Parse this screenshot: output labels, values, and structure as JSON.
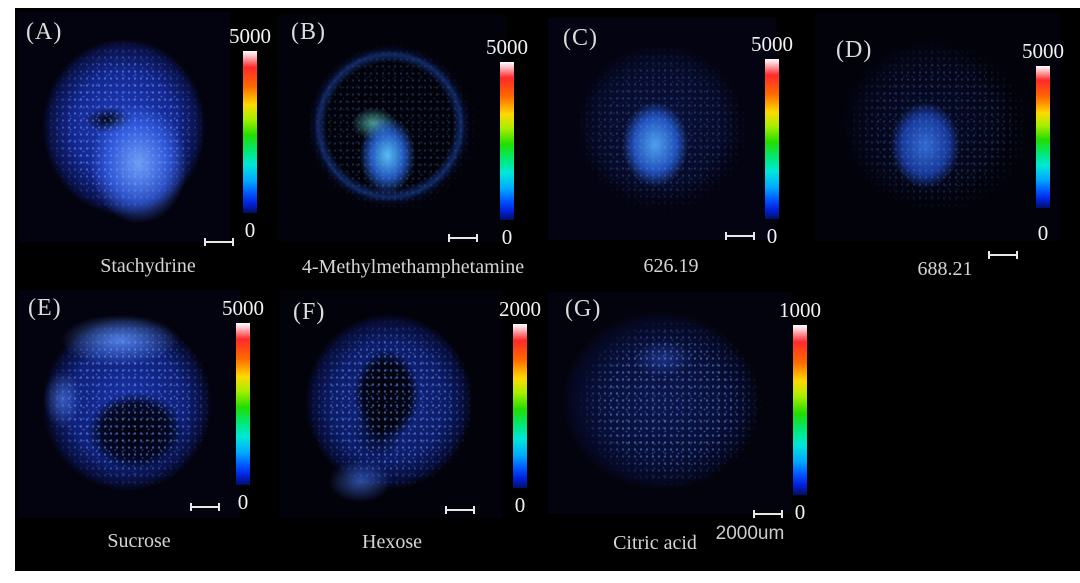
{
  "figure": {
    "background_color": "#ffffff",
    "canvas_color": "#000000",
    "text_color": "#d5d5d5",
    "tissue_base_color": "#1a3fd0",
    "scale_bar_label": "2000um",
    "colorbar": {
      "orientation": "vertical",
      "stops_top_to_bottom": [
        "#ffffff",
        "#ff2a2a",
        "#ff6a00",
        "#ffd900",
        "#22dd00",
        "#00e87a",
        "#00e8d8",
        "#00aaff",
        "#0055ff",
        "#000f66"
      ]
    }
  },
  "panels": [
    {
      "id": "A",
      "label": "(A)",
      "caption": "Stachydrine",
      "colorbar_max": "5000",
      "colorbar_min": "0"
    },
    {
      "id": "B",
      "label": "(B)",
      "caption": "4-Methylmethamphetamine",
      "colorbar_max": "5000",
      "colorbar_min": "0"
    },
    {
      "id": "C",
      "label": "(C)",
      "caption": "626.19",
      "colorbar_max": "5000",
      "colorbar_min": "0"
    },
    {
      "id": "D",
      "label": "(D)",
      "caption": "688.21",
      "colorbar_max": "5000",
      "colorbar_min": "0"
    },
    {
      "id": "E",
      "label": "(E)",
      "caption": "Sucrose",
      "colorbar_max": "5000",
      "colorbar_min": "0"
    },
    {
      "id": "F",
      "label": "(F)",
      "caption": "Hexose",
      "colorbar_max": "2000",
      "colorbar_min": "0"
    },
    {
      "id": "G",
      "label": "(G)",
      "caption": "Citric acid",
      "colorbar_max": "1000",
      "colorbar_min": "0"
    }
  ]
}
